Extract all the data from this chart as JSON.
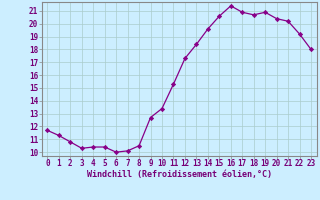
{
  "x": [
    0,
    1,
    2,
    3,
    4,
    5,
    6,
    7,
    8,
    9,
    10,
    11,
    12,
    13,
    14,
    15,
    16,
    17,
    18,
    19,
    20,
    21,
    22,
    23
  ],
  "y": [
    11.7,
    11.3,
    10.8,
    10.3,
    10.4,
    10.4,
    10.0,
    10.1,
    10.5,
    12.7,
    13.4,
    15.3,
    17.3,
    18.4,
    19.6,
    20.6,
    21.4,
    20.9,
    20.7,
    20.9,
    20.4,
    20.2,
    19.2,
    18.0
  ],
  "line_color": "#880088",
  "marker": "D",
  "marker_size": 2.2,
  "bg_color": "#cceeff",
  "grid_color": "#aacccc",
  "xlabel": "Windchill (Refroidissement éolien,°C)",
  "ylim": [
    9.7,
    21.7
  ],
  "xlim": [
    -0.5,
    23.5
  ],
  "yticks": [
    10,
    11,
    12,
    13,
    14,
    15,
    16,
    17,
    18,
    19,
    20,
    21
  ],
  "xticks": [
    0,
    1,
    2,
    3,
    4,
    5,
    6,
    7,
    8,
    9,
    10,
    11,
    12,
    13,
    14,
    15,
    16,
    17,
    18,
    19,
    20,
    21,
    22,
    23
  ],
  "tick_color": "#770077",
  "axis_color": "#888888",
  "font_size": 5.5,
  "label_font_size": 6.0
}
